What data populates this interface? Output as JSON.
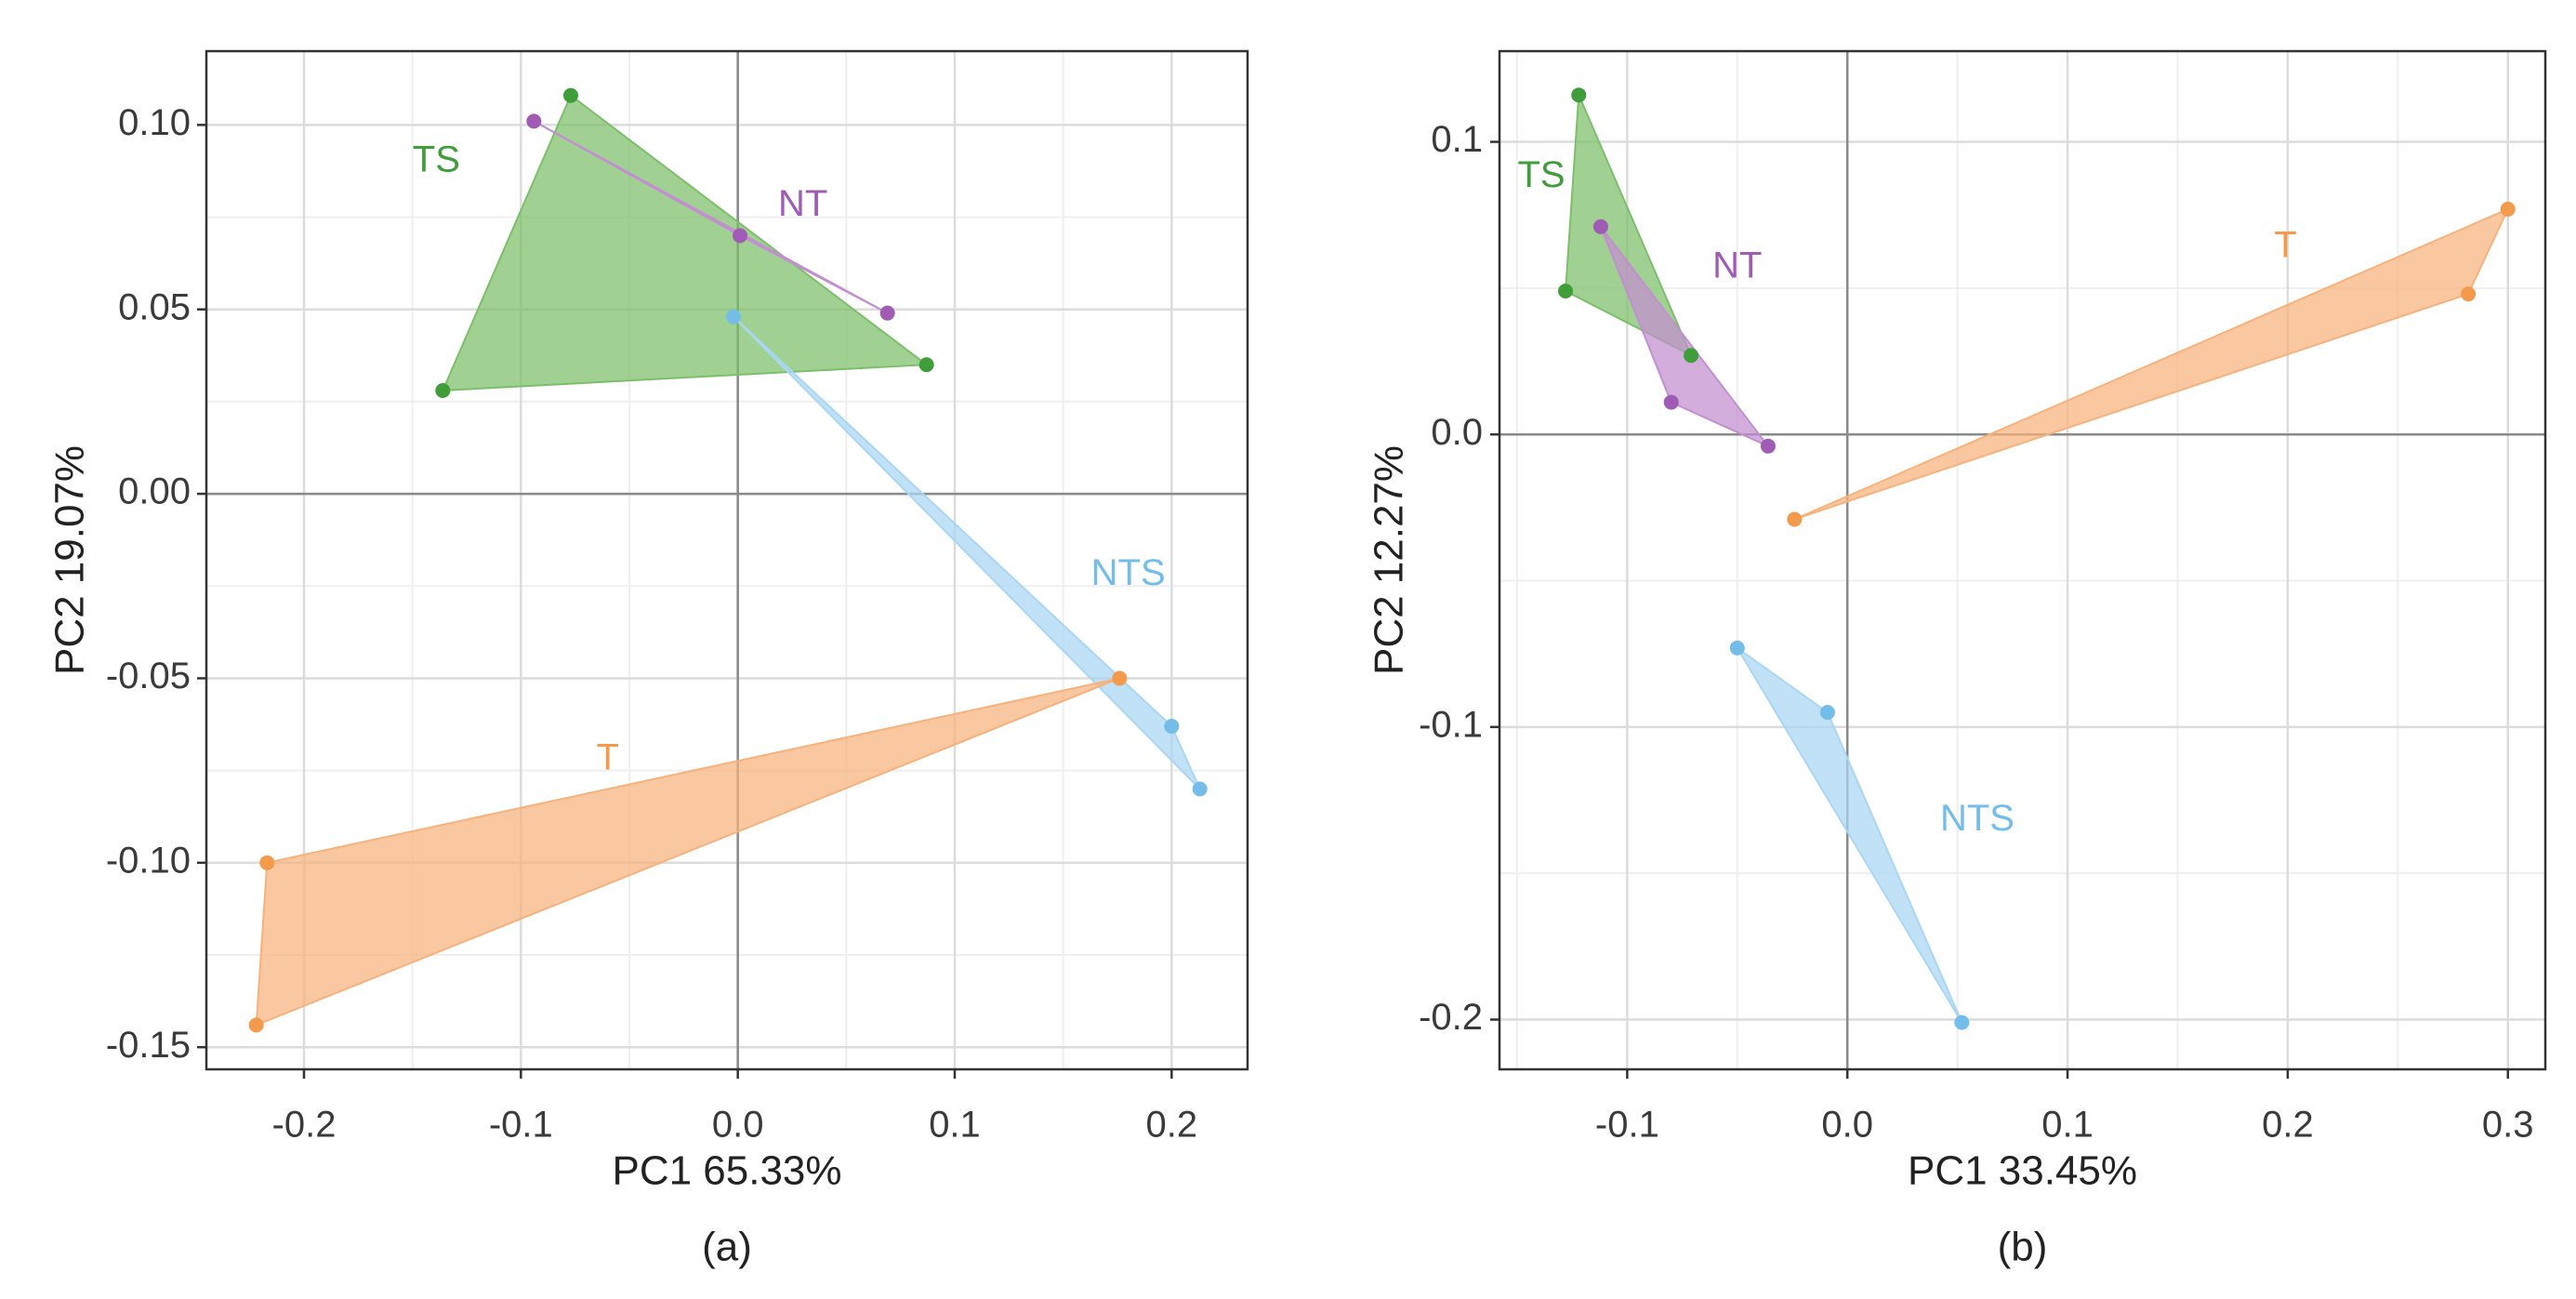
{
  "chart_data": [
    {
      "type": "scatter",
      "caption": "(a)",
      "xlabel": "PC1 65.33%",
      "ylabel": "PC2 19.07%",
      "xlim": [
        -0.245,
        0.235
      ],
      "ylim": [
        -0.156,
        0.12
      ],
      "xticks": [
        -0.2,
        -0.1,
        0.0,
        0.1,
        0.2
      ],
      "xtick_labels": [
        "-0.2",
        "-0.1",
        "0.0",
        "0.1",
        "0.2"
      ],
      "yticks": [
        -0.15,
        -0.1,
        -0.05,
        0.0,
        0.05,
        0.1
      ],
      "ytick_labels": [
        "-0.15",
        "-0.10",
        "-0.05",
        "0.00",
        "0.05",
        "0.10"
      ],
      "series": [
        {
          "name": "TS",
          "color": "#3f9e3a",
          "fill": "#7cbf6a",
          "label_at": [
            -0.139,
            0.09
          ],
          "points": [
            [
              -0.077,
              0.108
            ],
            [
              -0.136,
              0.028
            ],
            [
              0.087,
              0.035
            ]
          ]
        },
        {
          "name": "NT",
          "color": "#a05bb5",
          "fill": "#c28fd0",
          "label_at": [
            0.03,
            0.078
          ],
          "points": [
            [
              -0.094,
              0.101
            ],
            [
              0.001,
              0.07
            ],
            [
              0.069,
              0.049
            ]
          ]
        },
        {
          "name": "NTS",
          "color": "#73bde8",
          "fill": "#a9d6f2",
          "label_at": [
            0.18,
            -0.022
          ],
          "points": [
            [
              -0.002,
              0.048
            ],
            [
              0.2,
              -0.063
            ],
            [
              0.213,
              -0.08
            ]
          ]
        },
        {
          "name": "T",
          "color": "#f39a4d",
          "fill": "#f7b27c",
          "label_at": [
            -0.06,
            -0.072
          ],
          "points": [
            [
              0.176,
              -0.05
            ],
            [
              -0.217,
              -0.1
            ],
            [
              -0.222,
              -0.144
            ]
          ]
        }
      ]
    },
    {
      "type": "scatter",
      "caption": "(b)",
      "xlabel": "PC1 33.45%",
      "ylabel": "PC2 12.27%",
      "xlim": [
        -0.158,
        0.317
      ],
      "ylim": [
        -0.217,
        0.131
      ],
      "xticks": [
        -0.1,
        0.0,
        0.1,
        0.2,
        0.3
      ],
      "xtick_labels": [
        "-0.1",
        "0.0",
        "0.1",
        "0.2",
        "0.3"
      ],
      "yticks": [
        -0.2,
        -0.1,
        0.0,
        0.1
      ],
      "ytick_labels": [
        "-0.2",
        "-0.1",
        "0.0",
        "0.1"
      ],
      "series": [
        {
          "name": "TS",
          "color": "#3f9e3a",
          "fill": "#7cbf6a",
          "label_at": [
            -0.139,
            0.088
          ],
          "points": [
            [
              -0.122,
              0.116
            ],
            [
              -0.128,
              0.049
            ],
            [
              -0.071,
              0.027
            ]
          ]
        },
        {
          "name": "NT",
          "color": "#a05bb5",
          "fill": "#c28fd0",
          "label_at": [
            -0.05,
            0.057
          ],
          "points": [
            [
              -0.112,
              0.071
            ],
            [
              -0.08,
              0.011
            ],
            [
              -0.036,
              -0.004
            ]
          ]
        },
        {
          "name": "T",
          "color": "#f39a4d",
          "fill": "#f7b27c",
          "label_at": [
            0.199,
            0.064
          ],
          "points": [
            [
              0.3,
              0.077
            ],
            [
              0.282,
              0.048
            ],
            [
              -0.024,
              -0.029
            ]
          ]
        },
        {
          "name": "NTS",
          "color": "#73bde8",
          "fill": "#a9d6f2",
          "label_at": [
            0.059,
            -0.132
          ],
          "points": [
            [
              -0.05,
              -0.073
            ],
            [
              -0.009,
              -0.095
            ],
            [
              0.052,
              -0.201
            ]
          ]
        }
      ]
    }
  ]
}
